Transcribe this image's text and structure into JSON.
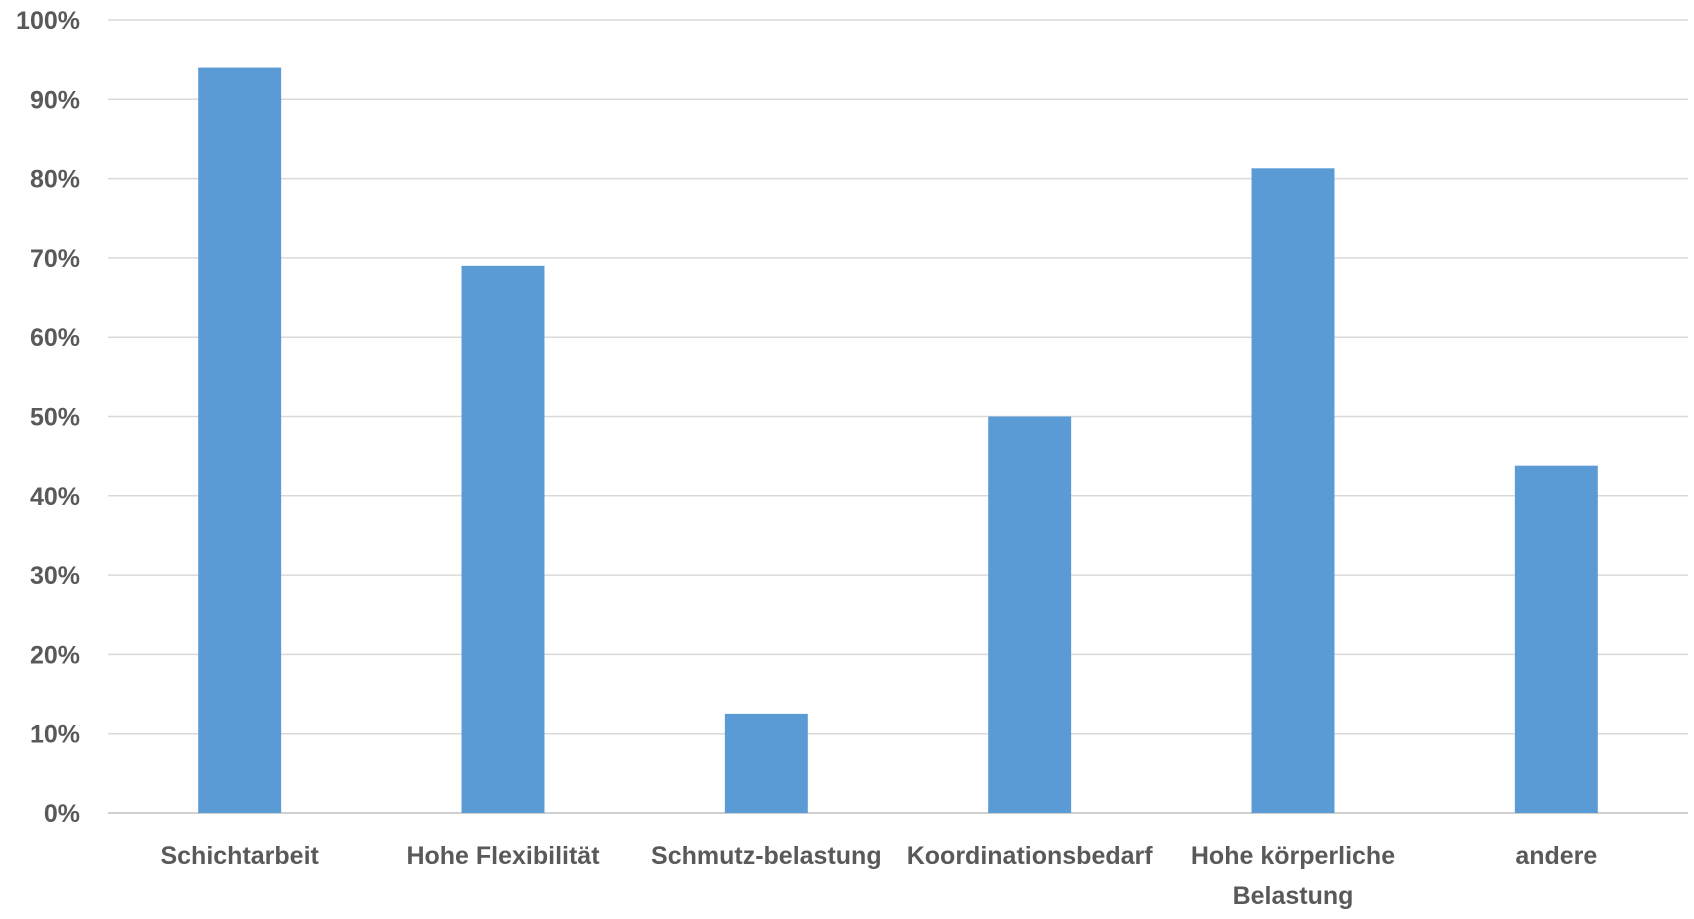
{
  "chart_data": {
    "type": "bar",
    "categories": [
      [
        "Schichtarbeit"
      ],
      [
        "Hohe Flexibilität"
      ],
      [
        "Schmutz-belastung"
      ],
      [
        "Koordinationsbedarf"
      ],
      [
        "Hohe körperliche",
        "Belastung"
      ],
      [
        "andere"
      ]
    ],
    "values": [
      94,
      69,
      12.5,
      50,
      81.3,
      43.8
    ],
    "ylim": [
      0,
      100
    ],
    "yticks": [
      0,
      10,
      20,
      30,
      40,
      50,
      60,
      70,
      80,
      90,
      100
    ],
    "ytick_labels": [
      "0%",
      "10%",
      "20%",
      "30%",
      "40%",
      "50%",
      "60%",
      "70%",
      "80%",
      "90%",
      "100%"
    ],
    "title": "",
    "xlabel": "",
    "ylabel": "",
    "grid": true,
    "legend": "none",
    "bar_color": "#5b9bd5"
  }
}
